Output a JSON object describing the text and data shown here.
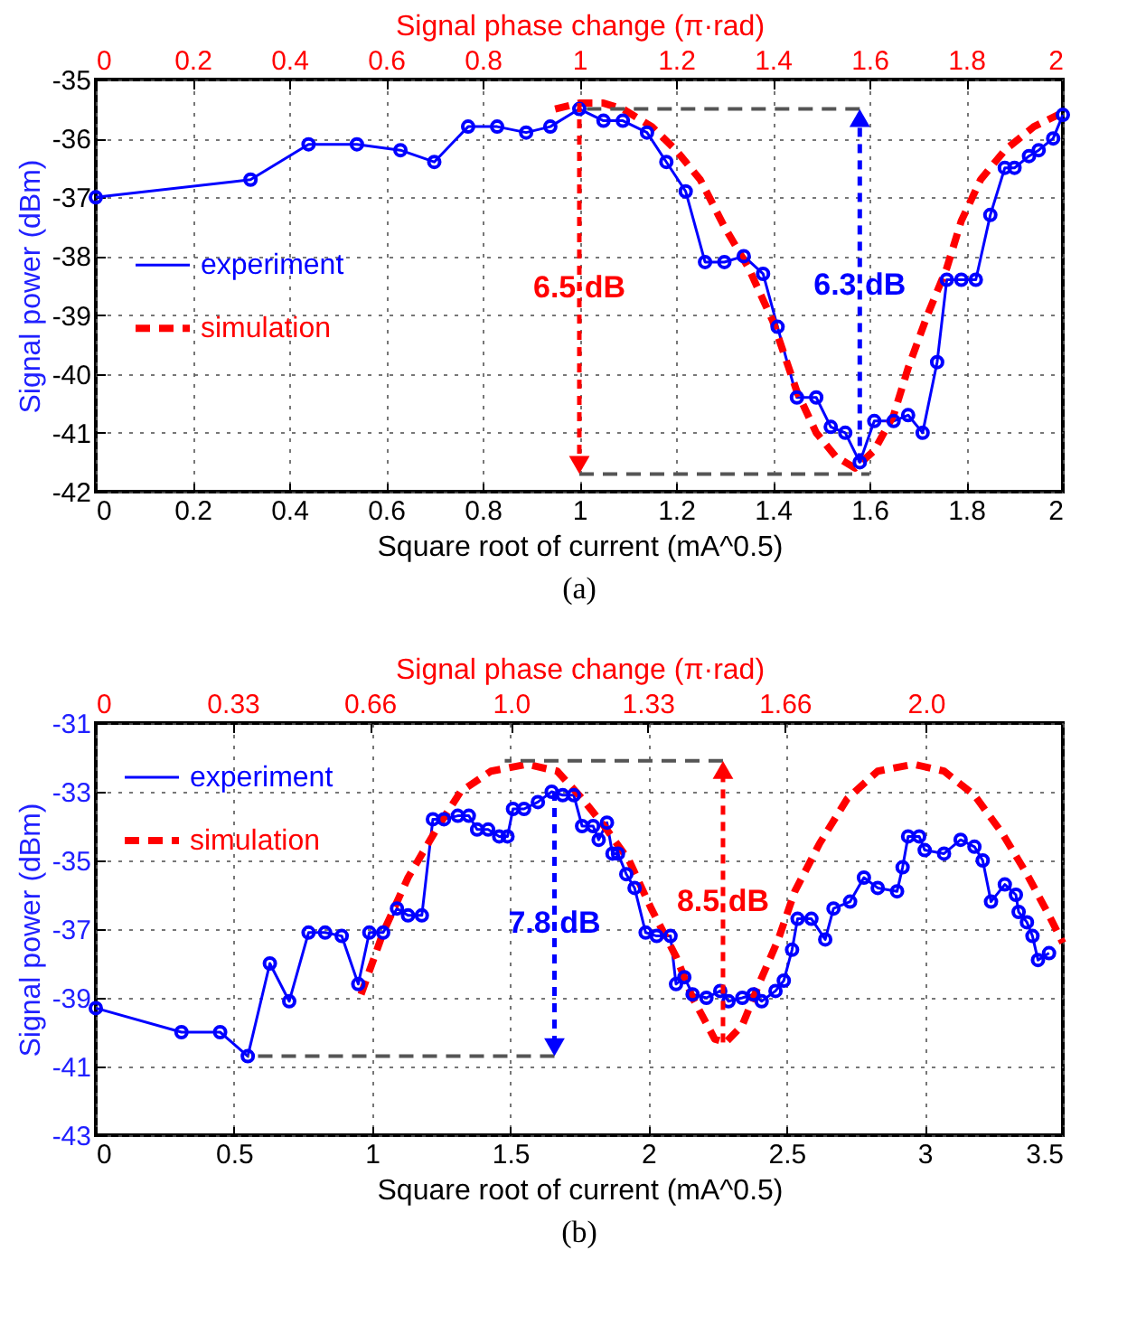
{
  "chart_data": [
    {
      "type": "line",
      "xlabel": "Square root of current (mA^0.5)",
      "ylabel": "Signal power (dBm)",
      "x2label": "Signal phase change (π·rad)",
      "xlim": [
        0,
        2
      ],
      "xticks": [
        0,
        0.2,
        0.4,
        0.6,
        0.8,
        1,
        1.2,
        1.4,
        1.6,
        1.8,
        2
      ],
      "x2lim": [
        0,
        2
      ],
      "x2ticks": [
        0,
        0.2,
        0.4,
        0.6,
        0.8,
        1,
        1.2,
        1.4,
        1.6,
        1.8,
        2
      ],
      "ylim": [
        -42,
        -35
      ],
      "yticks": [
        -42,
        -41,
        -40,
        -39,
        -38,
        -37,
        -36,
        -35
      ],
      "grid": true,
      "legend": "left",
      "series": [
        {
          "name": "experiment",
          "color": "#0000ff",
          "marker": "circle",
          "line_style": "solid",
          "x": [
            0,
            0.32,
            0.44,
            0.54,
            0.63,
            0.7,
            0.77,
            0.83,
            0.89,
            0.94,
            1.0,
            1.05,
            1.09,
            1.14,
            1.18,
            1.22,
            1.26,
            1.3,
            1.34,
            1.38,
            1.41,
            1.45,
            1.49,
            1.52,
            1.55,
            1.58,
            1.61,
            1.65,
            1.68,
            1.71,
            1.74,
            1.76,
            1.79,
            1.82,
            1.85,
            1.88,
            1.9,
            1.93,
            1.95,
            1.98,
            2.0
          ],
          "values": [
            -37.0,
            -36.7,
            -36.1,
            -36.1,
            -36.2,
            -36.4,
            -35.8,
            -35.8,
            -35.9,
            -35.8,
            -35.5,
            -35.7,
            -35.7,
            -35.9,
            -36.4,
            -36.9,
            -38.1,
            -38.1,
            -38.0,
            -38.3,
            -39.2,
            -40.4,
            -40.4,
            -40.9,
            -41.0,
            -41.5,
            -40.8,
            -40.8,
            -40.7,
            -41.0,
            -39.8,
            -38.4,
            -38.4,
            -38.4,
            -37.3,
            -36.5,
            -36.5,
            -36.3,
            -36.2,
            -36.0,
            -35.6
          ]
        },
        {
          "name": "simulation",
          "color": "#ff0000",
          "marker": "none",
          "line_style": "dashed",
          "x": [
            0.95,
            1.0,
            1.05,
            1.09,
            1.15,
            1.2,
            1.25,
            1.3,
            1.35,
            1.4,
            1.45,
            1.49,
            1.53,
            1.57,
            1.61,
            1.65,
            1.68,
            1.72,
            1.76,
            1.79,
            1.83,
            1.88,
            1.94,
            1.99
          ],
          "values": [
            -35.5,
            -35.4,
            -35.4,
            -35.5,
            -35.8,
            -36.2,
            -36.7,
            -37.5,
            -38.2,
            -39.1,
            -40.3,
            -41.0,
            -41.4,
            -41.6,
            -41.3,
            -40.7,
            -39.9,
            -39.0,
            -38.2,
            -37.4,
            -36.7,
            -36.2,
            -35.8,
            -35.6
          ]
        },
        {
          "type": "line",
          "color": "#555555",
          "line_style": "dashed",
          "x": [
            1.58,
            1.0
          ],
          "values": [
            -35.5,
            -35.5
          ]
        },
        {
          "type": "line",
          "color": "#555555",
          "line_style": "dashed",
          "x": [
            1.0,
            1.6
          ],
          "values": [
            -41.7,
            -41.7
          ]
        }
      ],
      "annotations": [
        "6.3 dB",
        "6.5 dB",
        "(a)"
      ]
    },
    {
      "type": "line",
      "xlabel": "Square root of current (mA^0.5)",
      "ylabel": "Signal power (dBm)",
      "x2label": "Signal phase change (π·rad)",
      "xlim": [
        0,
        3.5
      ],
      "xticks": [
        0,
        0.5,
        1,
        1.5,
        2,
        2.5,
        3,
        3.5
      ],
      "x2lim": [
        0,
        2.33
      ],
      "x2ticks": [
        0,
        0.33,
        0.66,
        {
          "value": 1.0,
          "label": "1.0"
        },
        1.33,
        1.66,
        {
          "value": 2.0,
          "label": "2.0"
        }
      ],
      "ylim": [
        -43,
        -31
      ],
      "yticks": [
        -43,
        -41,
        -39,
        -37,
        -35,
        -33,
        -31
      ],
      "grid": true,
      "legend": "top left",
      "series": [
        {
          "name": "experiment",
          "color": "#0000ff",
          "marker": "circle",
          "line_style": "solid",
          "x": [
            0,
            0.31,
            0.45,
            0.55,
            0.63,
            0.7,
            0.77,
            0.83,
            0.89,
            0.95,
            0.99,
            1.04,
            1.09,
            1.13,
            1.18,
            1.22,
            1.26,
            1.31,
            1.35,
            1.38,
            1.42,
            1.46,
            1.49,
            1.51,
            1.55,
            1.6,
            1.65,
            1.69,
            1.73,
            1.76,
            1.8,
            1.82,
            1.85,
            1.87,
            1.89,
            1.92,
            1.95,
            1.99,
            2.03,
            2.08,
            2.1,
            2.13,
            2.16,
            2.21,
            2.26,
            2.29,
            2.34,
            2.38,
            2.41,
            2.46,
            2.49,
            2.52,
            2.54,
            2.59,
            2.64,
            2.67,
            2.73,
            2.78,
            2.83,
            2.9,
            2.92,
            2.94,
            2.98,
            3.0,
            3.07,
            3.13,
            3.18,
            3.21,
            3.24,
            3.29,
            3.33,
            3.34,
            3.37,
            3.39,
            3.41,
            3.45
          ],
          "values": [
            -39.3,
            -40.0,
            -40.0,
            -40.7,
            -38.0,
            -39.1,
            -37.1,
            -37.1,
            -37.2,
            -38.6,
            -37.1,
            -37.1,
            -36.4,
            -36.6,
            -36.6,
            -33.8,
            -33.8,
            -33.7,
            -33.7,
            -34.1,
            -34.1,
            -34.3,
            -34.3,
            -33.5,
            -33.5,
            -33.3,
            -33.0,
            -33.1,
            -33.1,
            -34.0,
            -34.0,
            -34.4,
            -33.9,
            -34.8,
            -34.8,
            -35.4,
            -35.8,
            -37.1,
            -37.2,
            -37.2,
            -38.6,
            -38.4,
            -38.9,
            -39.0,
            -38.8,
            -39.1,
            -39.0,
            -38.9,
            -39.1,
            -38.8,
            -38.5,
            -37.6,
            -36.7,
            -36.7,
            -37.3,
            -36.4,
            -36.2,
            -35.5,
            -35.8,
            -35.9,
            -35.2,
            -34.3,
            -34.3,
            -34.7,
            -34.8,
            -34.4,
            -34.6,
            -35.0,
            -36.2,
            -35.7,
            -36.0,
            -36.5,
            -36.8,
            -37.2,
            -37.9,
            -37.7
          ]
        },
        {
          "name": "simulation",
          "color": "#ff0000",
          "marker": "none",
          "line_style": "dashed",
          "x": [
            0.96,
            1.04,
            1.13,
            1.24,
            1.32,
            1.43,
            1.56,
            1.67,
            1.76,
            1.84,
            1.93,
            2.01,
            2.1,
            2.16,
            2.24,
            2.28,
            2.34,
            2.4,
            2.47,
            2.53,
            2.62,
            2.72,
            2.83,
            2.96,
            3.07,
            3.18,
            3.28,
            3.37,
            3.45,
            3.5
          ],
          "values": [
            -38.9,
            -37.1,
            -35.5,
            -34.0,
            -33.0,
            -32.4,
            -32.2,
            -32.4,
            -33.2,
            -34.0,
            -35.0,
            -36.4,
            -37.8,
            -39.0,
            -40.2,
            -40.3,
            -39.8,
            -38.6,
            -37.3,
            -35.9,
            -34.5,
            -33.2,
            -32.4,
            -32.2,
            -32.4,
            -33.1,
            -34.2,
            -35.4,
            -36.6,
            -37.4
          ]
        },
        {
          "type": "line",
          "color": "#555555",
          "line_style": "dashed",
          "x": [
            1.66,
            0.55
          ],
          "values": [
            -40.7,
            -40.7
          ]
        },
        {
          "type": "line",
          "color": "#555555",
          "line_style": "dashed",
          "x": [
            2.27,
            1.48
          ],
          "values": [
            -32.1,
            -32.1
          ]
        }
      ],
      "annotations": [
        "7.8 dB",
        "8.5 dB",
        "(b)"
      ]
    }
  ]
}
